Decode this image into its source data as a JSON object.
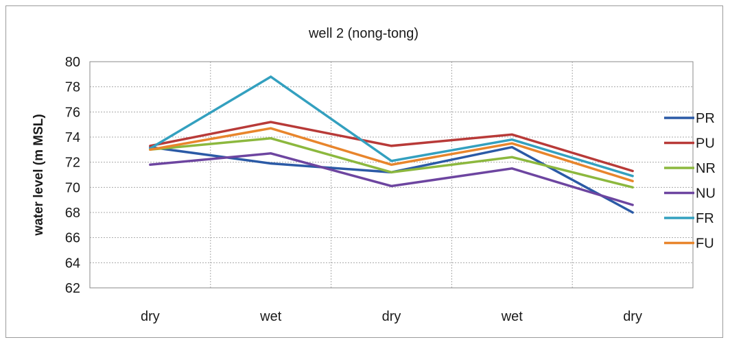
{
  "chart_data": {
    "type": "line",
    "title": "well 2 (nong-tong)",
    "xlabel": "",
    "ylabel": "water level (m MSL)",
    "categories": [
      "dry",
      "wet",
      "dry",
      "wet",
      "dry"
    ],
    "ylim": [
      62,
      80
    ],
    "yticks": [
      62,
      64,
      66,
      68,
      70,
      72,
      74,
      76,
      78,
      80
    ],
    "grid": true,
    "legend_position": "right",
    "series": [
      {
        "name": "PR",
        "color": "#2b5aa6",
        "values": [
          73.2,
          71.9,
          71.2,
          73.2,
          68.0
        ]
      },
      {
        "name": "PU",
        "color": "#b83a38",
        "values": [
          73.3,
          75.2,
          73.3,
          74.2,
          71.3
        ]
      },
      {
        "name": "NR",
        "color": "#8cb83e",
        "values": [
          73.0,
          73.9,
          71.2,
          72.4,
          70.0
        ]
      },
      {
        "name": "NU",
        "color": "#6d45a0",
        "values": [
          71.8,
          72.7,
          70.1,
          71.5,
          68.6
        ]
      },
      {
        "name": "FR",
        "color": "#33a0bf",
        "values": [
          73.1,
          78.8,
          72.1,
          73.8,
          70.9
        ]
      },
      {
        "name": "FU",
        "color": "#e8852c",
        "values": [
          73.0,
          74.7,
          71.8,
          73.5,
          70.5
        ]
      }
    ]
  }
}
